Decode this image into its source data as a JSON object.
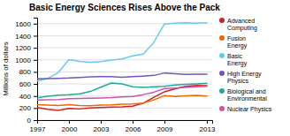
{
  "chart_data": {
    "type": "line",
    "title": "Basic Energy Sciences Rises Above the Pack",
    "y_label": "Millions of dollars",
    "x": [
      1997,
      1998,
      1999,
      2000,
      2001,
      2002,
      2003,
      2004,
      2005,
      2006,
      2007,
      2008,
      2009,
      2010,
      2011,
      2012,
      2013
    ],
    "xlim": [
      1997,
      2013.5
    ],
    "xticks": [
      1997,
      2000,
      2003,
      2006,
      2009,
      2013
    ],
    "ylim": [
      0,
      1700
    ],
    "yticks": [
      0,
      200,
      400,
      600,
      800,
      1000,
      1200,
      1400,
      1600
    ],
    "grid": "y",
    "legend": "right",
    "series": [
      {
        "name": "Advanced\nComputing",
        "color": "#cc2222",
        "values": [
          210,
          180,
          160,
          195,
          185,
          200,
          210,
          215,
          220,
          230,
          280,
          380,
          470,
          520,
          560,
          575,
          570
        ]
      },
      {
        "name": "Fusion\nEnergy",
        "color": "#ee6600",
        "values": [
          255,
          248,
          242,
          258,
          242,
          237,
          248,
          252,
          262,
          268,
          282,
          335,
          405,
          392,
          402,
          412,
          400
        ]
      },
      {
        "name": "Basic\nEnergy",
        "color": "#66ccee",
        "values": [
          650,
          690,
          790,
          1005,
          975,
          960,
          970,
          995,
          1015,
          1065,
          1095,
          1290,
          1595,
          1610,
          1615,
          1610,
          1615
        ]
      },
      {
        "name": "High Energy\nPhysics",
        "color": "#7755bb",
        "values": [
          685,
          688,
          692,
          698,
          708,
          718,
          720,
          720,
          712,
          720,
          730,
          742,
          782,
          770,
          760,
          762,
          762
        ]
      },
      {
        "name": "Biological and\nEnvironmental",
        "color": "#22aa99",
        "values": [
          370,
          395,
          415,
          420,
          435,
          475,
          545,
          615,
          600,
          552,
          542,
          552,
          562,
          582,
          592,
          602,
          612
        ]
      },
      {
        "name": "Nuclear Physics",
        "color": "#cc55aa",
        "values": [
          335,
          338,
          342,
          355,
          358,
          362,
          368,
          372,
          383,
          393,
          423,
          463,
          523,
          532,
          542,
          552,
          562
        ]
      }
    ]
  }
}
